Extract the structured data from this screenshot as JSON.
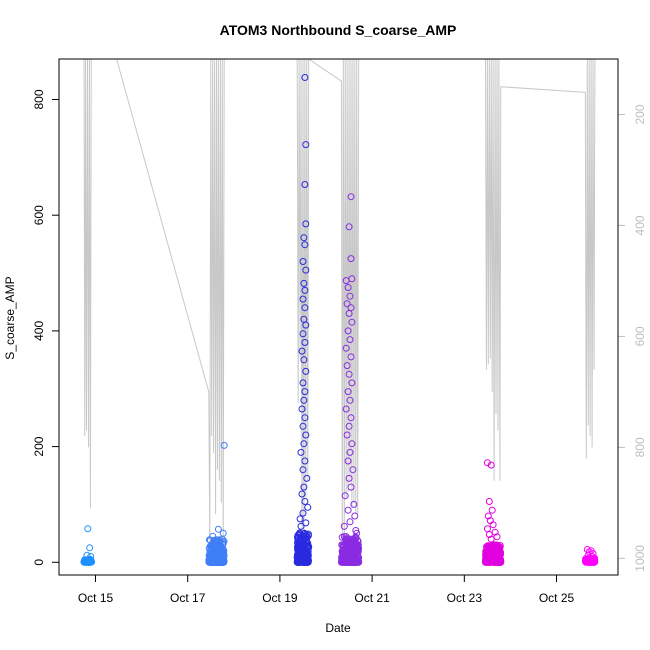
{
  "chart_data": {
    "type": "scatter",
    "title": "ATOM3 Northbound S_coarse_AMP",
    "xlabel": "Date",
    "ylabel": "S_coarse_AMP",
    "xlim": [
      "2023-10-14 05:00",
      "2023-10-26 08:00"
    ],
    "ylim": [
      -22,
      870
    ],
    "x_ticks": [
      {
        "date": "2023-10-15 00:00",
        "label": "Oct 15"
      },
      {
        "date": "2023-10-17 00:00",
        "label": "Oct 17"
      },
      {
        "date": "2023-10-19 00:00",
        "label": "Oct 19"
      },
      {
        "date": "2023-10-21 00:00",
        "label": "Oct 21"
      },
      {
        "date": "2023-10-23 00:00",
        "label": "Oct 23"
      },
      {
        "date": "2023-10-25 00:00",
        "label": "Oct 25"
      }
    ],
    "y_ticks": [
      0,
      200,
      400,
      600,
      800
    ],
    "right_axis": {
      "ticks": [
        200,
        400,
        600,
        800,
        1000
      ],
      "ylim": [
        1030,
        100
      ],
      "reversed": true,
      "color": "#bebebe"
    },
    "right_series_color": "#c8c8c8",
    "right_series": [
      {
        "x": "2023-10-14 18:00",
        "y": 100
      },
      {
        "x": "2023-10-14 18:25",
        "y": 780
      },
      {
        "x": "2023-10-14 18:50",
        "y": 100
      },
      {
        "x": "2023-10-14 19:20",
        "y": 770
      },
      {
        "x": "2023-10-14 19:50",
        "y": 100
      },
      {
        "x": "2023-10-14 20:20",
        "y": 800
      },
      {
        "x": "2023-10-14 20:50",
        "y": 100
      },
      {
        "x": "2023-10-14 21:20",
        "y": 910
      },
      {
        "x": "2023-10-14 21:45",
        "y": 100
      },
      {
        "x": "2023-10-15 11:00",
        "y": 100
      },
      {
        "x": "2023-10-17 11:00",
        "y": 700
      },
      {
        "x": "2023-10-17 11:30",
        "y": 980
      },
      {
        "x": "2023-10-17 12:00",
        "y": 100
      },
      {
        "x": "2023-10-17 12:30",
        "y": 780
      },
      {
        "x": "2023-10-17 13:00",
        "y": 100
      },
      {
        "x": "2023-10-17 13:30",
        "y": 810
      },
      {
        "x": "2023-10-17 14:00",
        "y": 100
      },
      {
        "x": "2023-10-17 14:30",
        "y": 920
      },
      {
        "x": "2023-10-17 15:00",
        "y": 100
      },
      {
        "x": "2023-10-17 15:30",
        "y": 840
      },
      {
        "x": "2023-10-17 16:00",
        "y": 100
      },
      {
        "x": "2023-10-17 16:30",
        "y": 860
      },
      {
        "x": "2023-10-17 17:00",
        "y": 100
      },
      {
        "x": "2023-10-17 17:30",
        "y": 900
      },
      {
        "x": "2023-10-17 18:00",
        "y": 100
      },
      {
        "x": "2023-10-17 18:30",
        "y": 990
      },
      {
        "x": "2023-10-17 19:00",
        "y": 100
      },
      {
        "x": "2023-10-19 09:00",
        "y": 100
      },
      {
        "x": "2023-10-19 09:30",
        "y": 720
      },
      {
        "x": "2023-10-19 10:00",
        "y": 100
      },
      {
        "x": "2023-10-19 10:30",
        "y": 640
      },
      {
        "x": "2023-10-19 11:00",
        "y": 100
      },
      {
        "x": "2023-10-19 11:30",
        "y": 1000
      },
      {
        "x": "2023-10-19 12:00",
        "y": 100
      },
      {
        "x": "2023-10-19 12:30",
        "y": 980
      },
      {
        "x": "2023-10-19 13:00",
        "y": 100
      },
      {
        "x": "2023-10-19 13:30",
        "y": 890
      },
      {
        "x": "2023-10-19 14:00",
        "y": 100
      },
      {
        "x": "2023-10-19 14:30",
        "y": 860
      },
      {
        "x": "2023-10-19 15:00",
        "y": 100
      },
      {
        "x": "2023-10-20 08:00",
        "y": 140
      },
      {
        "x": "2023-10-20 08:30",
        "y": 1000
      },
      {
        "x": "2023-10-20 09:00",
        "y": 100
      },
      {
        "x": "2023-10-20 09:30",
        "y": 960
      },
      {
        "x": "2023-10-20 10:00",
        "y": 100
      },
      {
        "x": "2023-10-20 10:30",
        "y": 890
      },
      {
        "x": "2023-10-20 11:00",
        "y": 100
      },
      {
        "x": "2023-10-20 11:30",
        "y": 880
      },
      {
        "x": "2023-10-20 12:00",
        "y": 100
      },
      {
        "x": "2023-10-20 12:30",
        "y": 860
      },
      {
        "x": "2023-10-20 13:00",
        "y": 100
      },
      {
        "x": "2023-10-20 13:30",
        "y": 910
      },
      {
        "x": "2023-10-20 14:00",
        "y": 100
      },
      {
        "x": "2023-10-20 14:30",
        "y": 900
      },
      {
        "x": "2023-10-20 15:00",
        "y": 100
      },
      {
        "x": "2023-10-20 15:30",
        "y": 920
      },
      {
        "x": "2023-10-20 16:00",
        "y": 100
      },
      {
        "x": "2023-10-20 16:30",
        "y": 920
      },
      {
        "x": "2023-10-20 17:00",
        "y": 100
      },
      {
        "x": "2023-10-23 11:00",
        "y": 100
      },
      {
        "x": "2023-10-23 11:30",
        "y": 660
      },
      {
        "x": "2023-10-23 12:00",
        "y": 100
      },
      {
        "x": "2023-10-23 12:30",
        "y": 650
      },
      {
        "x": "2023-10-23 13:00",
        "y": 100
      },
      {
        "x": "2023-10-23 13:30",
        "y": 640
      },
      {
        "x": "2023-10-23 14:00",
        "y": 100
      },
      {
        "x": "2023-10-23 14:30",
        "y": 700
      },
      {
        "x": "2023-10-23 15:00",
        "y": 100
      },
      {
        "x": "2023-10-23 15:30",
        "y": 860
      },
      {
        "x": "2023-10-23 16:00",
        "y": 100
      },
      {
        "x": "2023-10-23 16:30",
        "y": 740
      },
      {
        "x": "2023-10-23 17:00",
        "y": 100
      },
      {
        "x": "2023-10-23 17:30",
        "y": 770
      },
      {
        "x": "2023-10-23 18:00",
        "y": 100
      },
      {
        "x": "2023-10-23 18:30",
        "y": 860
      },
      {
        "x": "2023-10-23 19:00",
        "y": 150
      },
      {
        "x": "2023-10-25 14:00",
        "y": 160
      },
      {
        "x": "2023-10-25 15:00",
        "y": 160
      },
      {
        "x": "2023-10-25 15:30",
        "y": 820
      },
      {
        "x": "2023-10-25 16:00",
        "y": 100
      },
      {
        "x": "2023-10-25 16:30",
        "y": 760
      },
      {
        "x": "2023-10-25 17:00",
        "y": 100
      },
      {
        "x": "2023-10-25 17:30",
        "y": 780
      },
      {
        "x": "2023-10-25 18:00",
        "y": 100
      },
      {
        "x": "2023-10-25 18:30",
        "y": 800
      },
      {
        "x": "2023-10-25 19:00",
        "y": 100
      },
      {
        "x": "2023-10-25 19:30",
        "y": 660
      },
      {
        "x": "2023-10-25 20:00",
        "y": 100
      }
    ],
    "point_groups": [
      {
        "color": "#1e90ff",
        "start": "2023-10-14 18:00",
        "end": "2023-10-14 22:00",
        "n": 70,
        "base_max": 5,
        "points": [
          {
            "x": "2023-10-14 20:00",
            "y": 58
          },
          {
            "x": "2023-10-14 21:00",
            "y": 25
          },
          {
            "x": "2023-10-14 19:30",
            "y": 12
          },
          {
            "x": "2023-10-14 21:30",
            "y": 10
          }
        ]
      },
      {
        "color": "#3f7ef6",
        "start": "2023-10-17 11:00",
        "end": "2023-10-17 19:00",
        "n": 300,
        "base_max": 40,
        "points": [
          {
            "x": "2023-10-17 19:00",
            "y": 202
          },
          {
            "x": "2023-10-17 16:00",
            "y": 57
          },
          {
            "x": "2023-10-17 18:30",
            "y": 50
          },
          {
            "x": "2023-10-17 13:00",
            "y": 45
          }
        ]
      },
      {
        "color": "#2a2ae0",
        "start": "2023-10-19 09:00",
        "end": "2023-10-19 15:00",
        "n": 260,
        "base_max": 55,
        "points": [
          {
            "x": "2023-10-19 13:00",
            "y": 838
          },
          {
            "x": "2023-10-19 13:30",
            "y": 722
          },
          {
            "x": "2023-10-19 13:00",
            "y": 653
          },
          {
            "x": "2023-10-19 13:30",
            "y": 585
          },
          {
            "x": "2023-10-19 12:30",
            "y": 561
          },
          {
            "x": "2023-10-19 13:00",
            "y": 549
          },
          {
            "x": "2023-10-19 12:00",
            "y": 520
          },
          {
            "x": "2023-10-19 13:30",
            "y": 505
          },
          {
            "x": "2023-10-19 12:30",
            "y": 482
          },
          {
            "x": "2023-10-19 13:00",
            "y": 470
          },
          {
            "x": "2023-10-19 12:00",
            "y": 455
          },
          {
            "x": "2023-10-19 13:00",
            "y": 440
          },
          {
            "x": "2023-10-19 12:30",
            "y": 420
          },
          {
            "x": "2023-10-19 13:30",
            "y": 410
          },
          {
            "x": "2023-10-19 12:00",
            "y": 395
          },
          {
            "x": "2023-10-19 13:00",
            "y": 380
          },
          {
            "x": "2023-10-19 11:30",
            "y": 365
          },
          {
            "x": "2023-10-19 12:30",
            "y": 350
          },
          {
            "x": "2023-10-19 13:30",
            "y": 330
          },
          {
            "x": "2023-10-19 12:00",
            "y": 310
          },
          {
            "x": "2023-10-19 13:00",
            "y": 295
          },
          {
            "x": "2023-10-19 12:30",
            "y": 280
          },
          {
            "x": "2023-10-19 11:30",
            "y": 265
          },
          {
            "x": "2023-10-19 13:00",
            "y": 250
          },
          {
            "x": "2023-10-19 12:00",
            "y": 235
          },
          {
            "x": "2023-10-19 13:30",
            "y": 220
          },
          {
            "x": "2023-10-19 12:30",
            "y": 205
          },
          {
            "x": "2023-10-19 11:00",
            "y": 190
          },
          {
            "x": "2023-10-19 13:00",
            "y": 175
          },
          {
            "x": "2023-10-19 12:00",
            "y": 160
          },
          {
            "x": "2023-10-19 14:00",
            "y": 145
          },
          {
            "x": "2023-10-19 12:30",
            "y": 130
          },
          {
            "x": "2023-10-19 11:30",
            "y": 118
          },
          {
            "x": "2023-10-19 13:00",
            "y": 105
          },
          {
            "x": "2023-10-19 14:30",
            "y": 95
          },
          {
            "x": "2023-10-19 12:00",
            "y": 85
          },
          {
            "x": "2023-10-19 10:30",
            "y": 75
          },
          {
            "x": "2023-10-19 13:30",
            "y": 68
          },
          {
            "x": "2023-10-19 11:00",
            "y": 62
          }
        ]
      },
      {
        "color": "#8a2be2",
        "start": "2023-10-20 08:00",
        "end": "2023-10-20 17:00",
        "n": 320,
        "base_max": 45,
        "points": [
          {
            "x": "2023-10-20 13:00",
            "y": 632
          },
          {
            "x": "2023-10-20 12:00",
            "y": 580
          },
          {
            "x": "2023-10-20 13:00",
            "y": 525
          },
          {
            "x": "2023-10-20 13:30",
            "y": 490
          },
          {
            "x": "2023-10-20 10:30",
            "y": 487
          },
          {
            "x": "2023-10-20 11:30",
            "y": 475
          },
          {
            "x": "2023-10-20 12:30",
            "y": 460
          },
          {
            "x": "2023-10-20 11:00",
            "y": 447
          },
          {
            "x": "2023-10-20 13:00",
            "y": 440
          },
          {
            "x": "2023-10-20 12:00",
            "y": 430
          },
          {
            "x": "2023-10-20 13:30",
            "y": 415
          },
          {
            "x": "2023-10-20 11:30",
            "y": 400
          },
          {
            "x": "2023-10-20 12:30",
            "y": 385
          },
          {
            "x": "2023-10-20 10:30",
            "y": 370
          },
          {
            "x": "2023-10-20 13:00",
            "y": 355
          },
          {
            "x": "2023-10-20 11:00",
            "y": 340
          },
          {
            "x": "2023-10-20 12:00",
            "y": 325
          },
          {
            "x": "2023-10-20 13:30",
            "y": 310
          },
          {
            "x": "2023-10-20 11:30",
            "y": 295
          },
          {
            "x": "2023-10-20 12:30",
            "y": 280
          },
          {
            "x": "2023-10-20 10:30",
            "y": 265
          },
          {
            "x": "2023-10-20 13:00",
            "y": 250
          },
          {
            "x": "2023-10-20 12:00",
            "y": 235
          },
          {
            "x": "2023-10-20 11:00",
            "y": 220
          },
          {
            "x": "2023-10-20 13:30",
            "y": 205
          },
          {
            "x": "2023-10-20 12:30",
            "y": 190
          },
          {
            "x": "2023-10-20 11:30",
            "y": 175
          },
          {
            "x": "2023-10-20 14:00",
            "y": 160
          },
          {
            "x": "2023-10-20 12:00",
            "y": 145
          },
          {
            "x": "2023-10-20 13:00",
            "y": 130
          },
          {
            "x": "2023-10-20 10:00",
            "y": 115
          },
          {
            "x": "2023-10-20 14:30",
            "y": 100
          },
          {
            "x": "2023-10-20 11:30",
            "y": 90
          },
          {
            "x": "2023-10-20 15:00",
            "y": 80
          },
          {
            "x": "2023-10-20 12:30",
            "y": 70
          },
          {
            "x": "2023-10-20 09:30",
            "y": 62
          },
          {
            "x": "2023-10-20 15:30",
            "y": 55
          },
          {
            "x": "2023-10-20 16:00",
            "y": 50
          }
        ]
      },
      {
        "color": "#e000e0",
        "start": "2023-10-23 11:00",
        "end": "2023-10-23 19:00",
        "n": 280,
        "base_max": 30,
        "points": [
          {
            "x": "2023-10-23 12:00",
            "y": 172
          },
          {
            "x": "2023-10-23 14:00",
            "y": 168
          },
          {
            "x": "2023-10-23 13:00",
            "y": 105
          },
          {
            "x": "2023-10-23 14:30",
            "y": 90
          },
          {
            "x": "2023-10-23 12:30",
            "y": 80
          },
          {
            "x": "2023-10-23 13:30",
            "y": 72
          },
          {
            "x": "2023-10-23 15:00",
            "y": 65
          },
          {
            "x": "2023-10-23 12:00",
            "y": 58
          },
          {
            "x": "2023-10-23 16:00",
            "y": 52
          },
          {
            "x": "2023-10-23 13:00",
            "y": 48
          },
          {
            "x": "2023-10-23 17:00",
            "y": 44
          },
          {
            "x": "2023-10-23 14:00",
            "y": 40
          }
        ]
      },
      {
        "color": "#ff00ff",
        "start": "2023-10-25 15:00",
        "end": "2023-10-25 20:00",
        "n": 90,
        "base_max": 8,
        "points": [
          {
            "x": "2023-10-25 16:00",
            "y": 22
          },
          {
            "x": "2023-10-25 18:00",
            "y": 20
          },
          {
            "x": "2023-10-25 17:00",
            "y": 18
          },
          {
            "x": "2023-10-25 19:00",
            "y": 15
          },
          {
            "x": "2023-10-25 16:30",
            "y": 12
          },
          {
            "x": "2023-10-25 18:30",
            "y": 10
          }
        ]
      }
    ]
  }
}
